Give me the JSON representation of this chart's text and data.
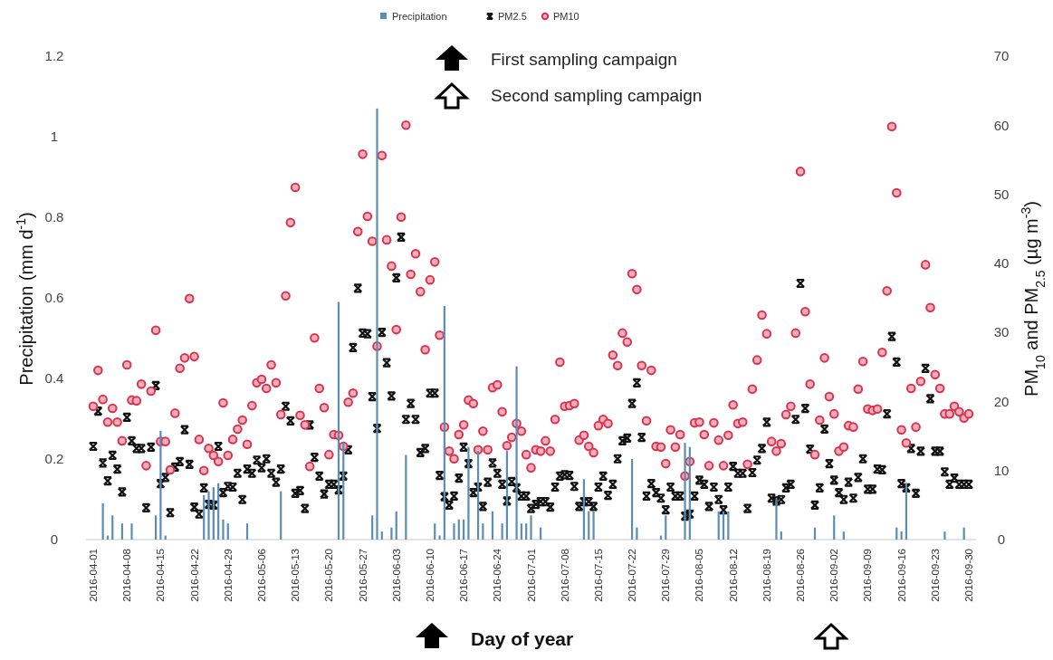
{
  "chart_data": {
    "type": "bar",
    "xlabel": "Day of year",
    "ylabel": "Precipitation (mm d$^{-1}$)",
    "y2label": "PM$_{10}$ and PM$_{2.5}$ (µg m$^{-3}$)",
    "annotations": [
      "First sampling campaign",
      "Second sampling campaign"
    ],
    "legend": "top",
    "grid": false,
    "ylim": [
      0,
      1.2
    ],
    "yticks": [
      0,
      0.2,
      0.4,
      0.6,
      0.8,
      1,
      1.2
    ],
    "y2lim": [
      0,
      70
    ],
    "y2ticks": [
      0,
      10,
      20,
      30,
      40,
      50,
      60,
      70
    ],
    "categories": [
      "2016-04-01",
      null,
      null,
      null,
      null,
      null,
      null,
      "2016-04-08",
      null,
      null,
      null,
      null,
      null,
      null,
      "2016-04-15",
      null,
      null,
      null,
      null,
      null,
      null,
      "2016-04-22",
      null,
      null,
      null,
      null,
      null,
      null,
      "2016-04-29",
      null,
      null,
      null,
      null,
      null,
      null,
      "2016-05-06",
      null,
      null,
      null,
      null,
      null,
      null,
      "2016-05-13",
      null,
      null,
      null,
      null,
      null,
      null,
      "2016-05-20",
      null,
      null,
      null,
      null,
      null,
      null,
      "2016-05-27",
      null,
      null,
      null,
      null,
      null,
      null,
      "2016-06-03",
      null,
      null,
      null,
      null,
      null,
      null,
      "2016-06-10",
      null,
      null,
      null,
      null,
      null,
      null,
      "2016-06-17",
      null,
      null,
      null,
      null,
      null,
      null,
      "2016-06-24",
      null,
      null,
      null,
      null,
      null,
      null,
      "2016-07-01",
      null,
      null,
      null,
      null,
      null,
      null,
      "2016-07-08",
      null,
      null,
      null,
      null,
      null,
      null,
      "2016-07-15",
      null,
      null,
      null,
      null,
      null,
      null,
      "2016-07-22",
      null,
      null,
      null,
      null,
      null,
      null,
      "2016-07-29",
      null,
      null,
      null,
      null,
      null,
      null,
      "2016-08-05",
      null,
      null,
      null,
      null,
      null,
      null,
      "2016-08-12",
      null,
      null,
      null,
      null,
      null,
      null,
      "2016-08-19",
      null,
      null,
      null,
      null,
      null,
      null,
      "2016-08-26",
      null,
      null,
      null,
      null,
      null,
      null,
      "2016-09-02",
      null,
      null,
      null,
      null,
      null,
      null,
      "2016-09-09",
      null,
      null,
      null,
      null,
      null,
      null,
      "2016-09-16",
      null,
      null,
      null,
      null,
      null,
      null,
      "2016-09-23",
      null,
      null,
      null,
      null,
      null,
      null,
      "2016-09-30"
    ],
    "series": [
      {
        "name": "Precipitation",
        "color": "#5b8db5",
        "values": [
          0,
          0,
          0.09,
          0.01,
          0.06,
          0,
          0.04,
          0,
          0.04,
          0,
          0,
          0,
          0,
          0.06,
          0.27,
          0.01,
          0,
          0,
          0,
          0,
          0,
          0,
          0,
          0.11,
          0.12,
          0.13,
          0.14,
          0.05,
          0.04,
          0,
          0,
          0,
          0.04,
          0,
          0,
          0,
          0,
          0,
          0,
          0.12,
          0,
          0,
          0,
          0,
          0,
          0,
          0,
          0,
          0,
          0,
          0,
          0.59,
          0.24,
          0,
          0,
          0,
          0,
          0,
          0.06,
          1.07,
          0.02,
          0,
          0.03,
          0.07,
          0,
          0.21,
          0,
          0,
          0,
          0,
          0,
          0.04,
          0.01,
          0.58,
          0,
          0.04,
          0.05,
          0.05,
          0.23,
          0,
          0.22,
          0.04,
          0,
          0.07,
          0,
          0.04,
          0.22,
          0,
          0.43,
          0.04,
          0.04,
          0.06,
          0,
          0.03,
          0,
          0,
          0,
          0,
          0,
          0,
          0,
          0,
          0.15,
          0.07,
          0.07,
          0,
          0,
          0,
          0,
          0,
          0,
          0,
          0.2,
          0.03,
          0,
          0,
          0,
          0,
          0.01,
          0.06,
          0,
          0,
          0,
          0.24,
          0.23,
          0,
          0,
          0,
          0,
          0,
          0.07,
          0.07,
          0.07,
          0,
          0,
          0,
          0,
          0,
          0,
          0,
          0,
          0,
          0.1,
          0.02,
          0,
          0,
          0,
          0,
          0,
          0,
          0.03,
          0,
          0,
          0,
          0.06,
          0,
          0.02,
          0,
          0,
          0,
          0,
          0,
          0,
          0,
          0,
          0,
          0,
          0.03,
          0.02,
          0.14,
          0,
          0,
          0,
          0,
          0,
          0,
          0,
          0.02,
          0,
          0,
          0,
          0.03,
          0
        ]
      },
      {
        "name": "PM2.5",
        "type": "scatter",
        "axis": "y2",
        "marker": "cross",
        "color": "#111111",
        "values": [
          13.5,
          18.6,
          11.1,
          8.5,
          12.2,
          10.2,
          6.9,
          17.7,
          14.3,
          13.2,
          13.2,
          4.6,
          13.4,
          22.3,
          8.1,
          9.0,
          3.9,
          10.5,
          11.3,
          15.9,
          10.9,
          4.7,
          3.7,
          7.5,
          5.1,
          5.0,
          13.5,
          6.8,
          7.7,
          7.6,
          9.6,
          5.8,
          10.2,
          9.6,
          11.5,
          10.4,
          11.7,
          9.6,
          8.3,
          10.2,
          19.3,
          17.2,
          6.7,
          7.1,
          4.5,
          16.6,
          11.9,
          9.2,
          6.6,
          8.0,
          8.0,
          7.2,
          9.2,
          13.0,
          27.8,
          36.4,
          29.9,
          29.8,
          20.7,
          16.1,
          30.0,
          25.6,
          20.8,
          37.9,
          43.8,
          17.4,
          19.7,
          17.4,
          12.6,
          13.2,
          21.2,
          21.2,
          9.3,
          6.2,
          5.0,
          6.3,
          8.9,
          13.4,
          11.0,
          6.8,
          7.6,
          4.8,
          8.3,
          11.1,
          9.6,
          8.0,
          5.6,
          8.4,
          7.5,
          6.3,
          6.3,
          4.5,
          5.1,
          5.5,
          5.5,
          4.7,
          7.6,
          9.2,
          9.4,
          9.3,
          7.7,
          4.8,
          5.5,
          5.5,
          4.8,
          7.6,
          9.2,
          6.4,
          8.0,
          11.7,
          14.3,
          14.7,
          19.7,
          22.7,
          14.8,
          6.3,
          8.1,
          6.8,
          6.0,
          4.3,
          7.6,
          6.3,
          6.3,
          3.4,
          3.7,
          6.3,
          8.6,
          8.0,
          4.8,
          7.6,
          5.8,
          4.3,
          7.6,
          10.6,
          9.6,
          9.6,
          4.5,
          9.7,
          11.5,
          13.2,
          17.0,
          6.0,
          5.6,
          5.8,
          7.5,
          8.0,
          17.4,
          37.1,
          19.0,
          13.1,
          5.0,
          7.5,
          16.0,
          11.0,
          8.6,
          6.8,
          5.8,
          8.3,
          6.0,
          9.0,
          11.7,
          7.3,
          7.3,
          10.2,
          10.1,
          18.2,
          29.4,
          25.7,
          8.1,
          7.5,
          13.2,
          6.7,
          12.8,
          24.8,
          20.4,
          12.8,
          12.8,
          9.8,
          8.0,
          8.9,
          8.0,
          8.0,
          8.0
        ]
      },
      {
        "name": "PM10",
        "type": "scatter",
        "axis": "y2",
        "marker": "circle",
        "color": "#d6344f",
        "values": [
          19.3,
          24.5,
          20.3,
          17.0,
          19.0,
          17.0,
          14.3,
          25.3,
          20.2,
          20.1,
          22.5,
          10.7,
          21.5,
          30.3,
          14.2,
          14.2,
          10.1,
          18.3,
          24.8,
          26.3,
          34.9,
          26.5,
          14.5,
          10.0,
          13.2,
          12.2,
          11.3,
          19.8,
          12.2,
          14.5,
          16.0,
          17.3,
          13.8,
          19.4,
          22.7,
          23.2,
          21.9,
          25.3,
          22.7,
          18.1,
          35.3,
          45.9,
          51.0,
          18.0,
          16.6,
          10.6,
          29.2,
          21.9,
          19.1,
          12.3,
          15.2,
          15.1,
          13.5,
          19.9,
          21.2,
          44.6,
          55.8,
          46.8,
          43.2,
          28.0,
          55.6,
          43.4,
          39.6,
          30.4,
          46.7,
          60.0,
          38.4,
          41.4,
          35.9,
          27.5,
          37.6,
          40.2,
          29.6,
          16.3,
          12.8,
          11.7,
          15.2,
          16.6,
          20.2,
          19.7,
          13.0,
          15.7,
          13.0,
          22.0,
          22.4,
          18.5,
          13.6,
          14.8,
          16.8,
          15.7,
          12.3,
          10.4,
          13.0,
          12.8,
          14.3,
          12.8,
          17.4,
          25.7,
          19.3,
          19.4,
          19.7,
          14.4,
          15.1,
          13.5,
          12.6,
          16.5,
          17.4,
          16.8,
          26.7,
          25.2,
          29.9,
          28.6,
          38.5,
          36.2,
          25.2,
          17.2,
          24.5,
          13.5,
          13.4,
          11.0,
          15.9,
          13.4,
          15.2,
          9.2,
          11.3,
          16.9,
          17.0,
          15.2,
          10.7,
          16.9,
          14.4,
          10.7,
          15.1,
          19.5,
          16.8,
          17.0,
          10.9,
          21.8,
          26.0,
          32.5,
          29.8,
          14.2,
          12.8,
          13.9,
          18.1,
          19.3,
          29.9,
          53.3,
          33.0,
          22.5,
          12.3,
          17.3,
          26.3,
          20.7,
          18.2,
          12.8,
          13.4,
          16.5,
          16.3,
          21.8,
          25.8,
          18.9,
          18.7,
          18.9,
          27.1,
          36.0,
          59.8,
          50.2,
          15.9,
          14.0,
          21.9,
          16.3,
          22.9,
          39.8,
          33.6,
          23.9,
          21.9,
          18.2,
          18.2,
          19.3,
          18.5,
          17.6,
          18.2
        ]
      }
    ]
  }
}
